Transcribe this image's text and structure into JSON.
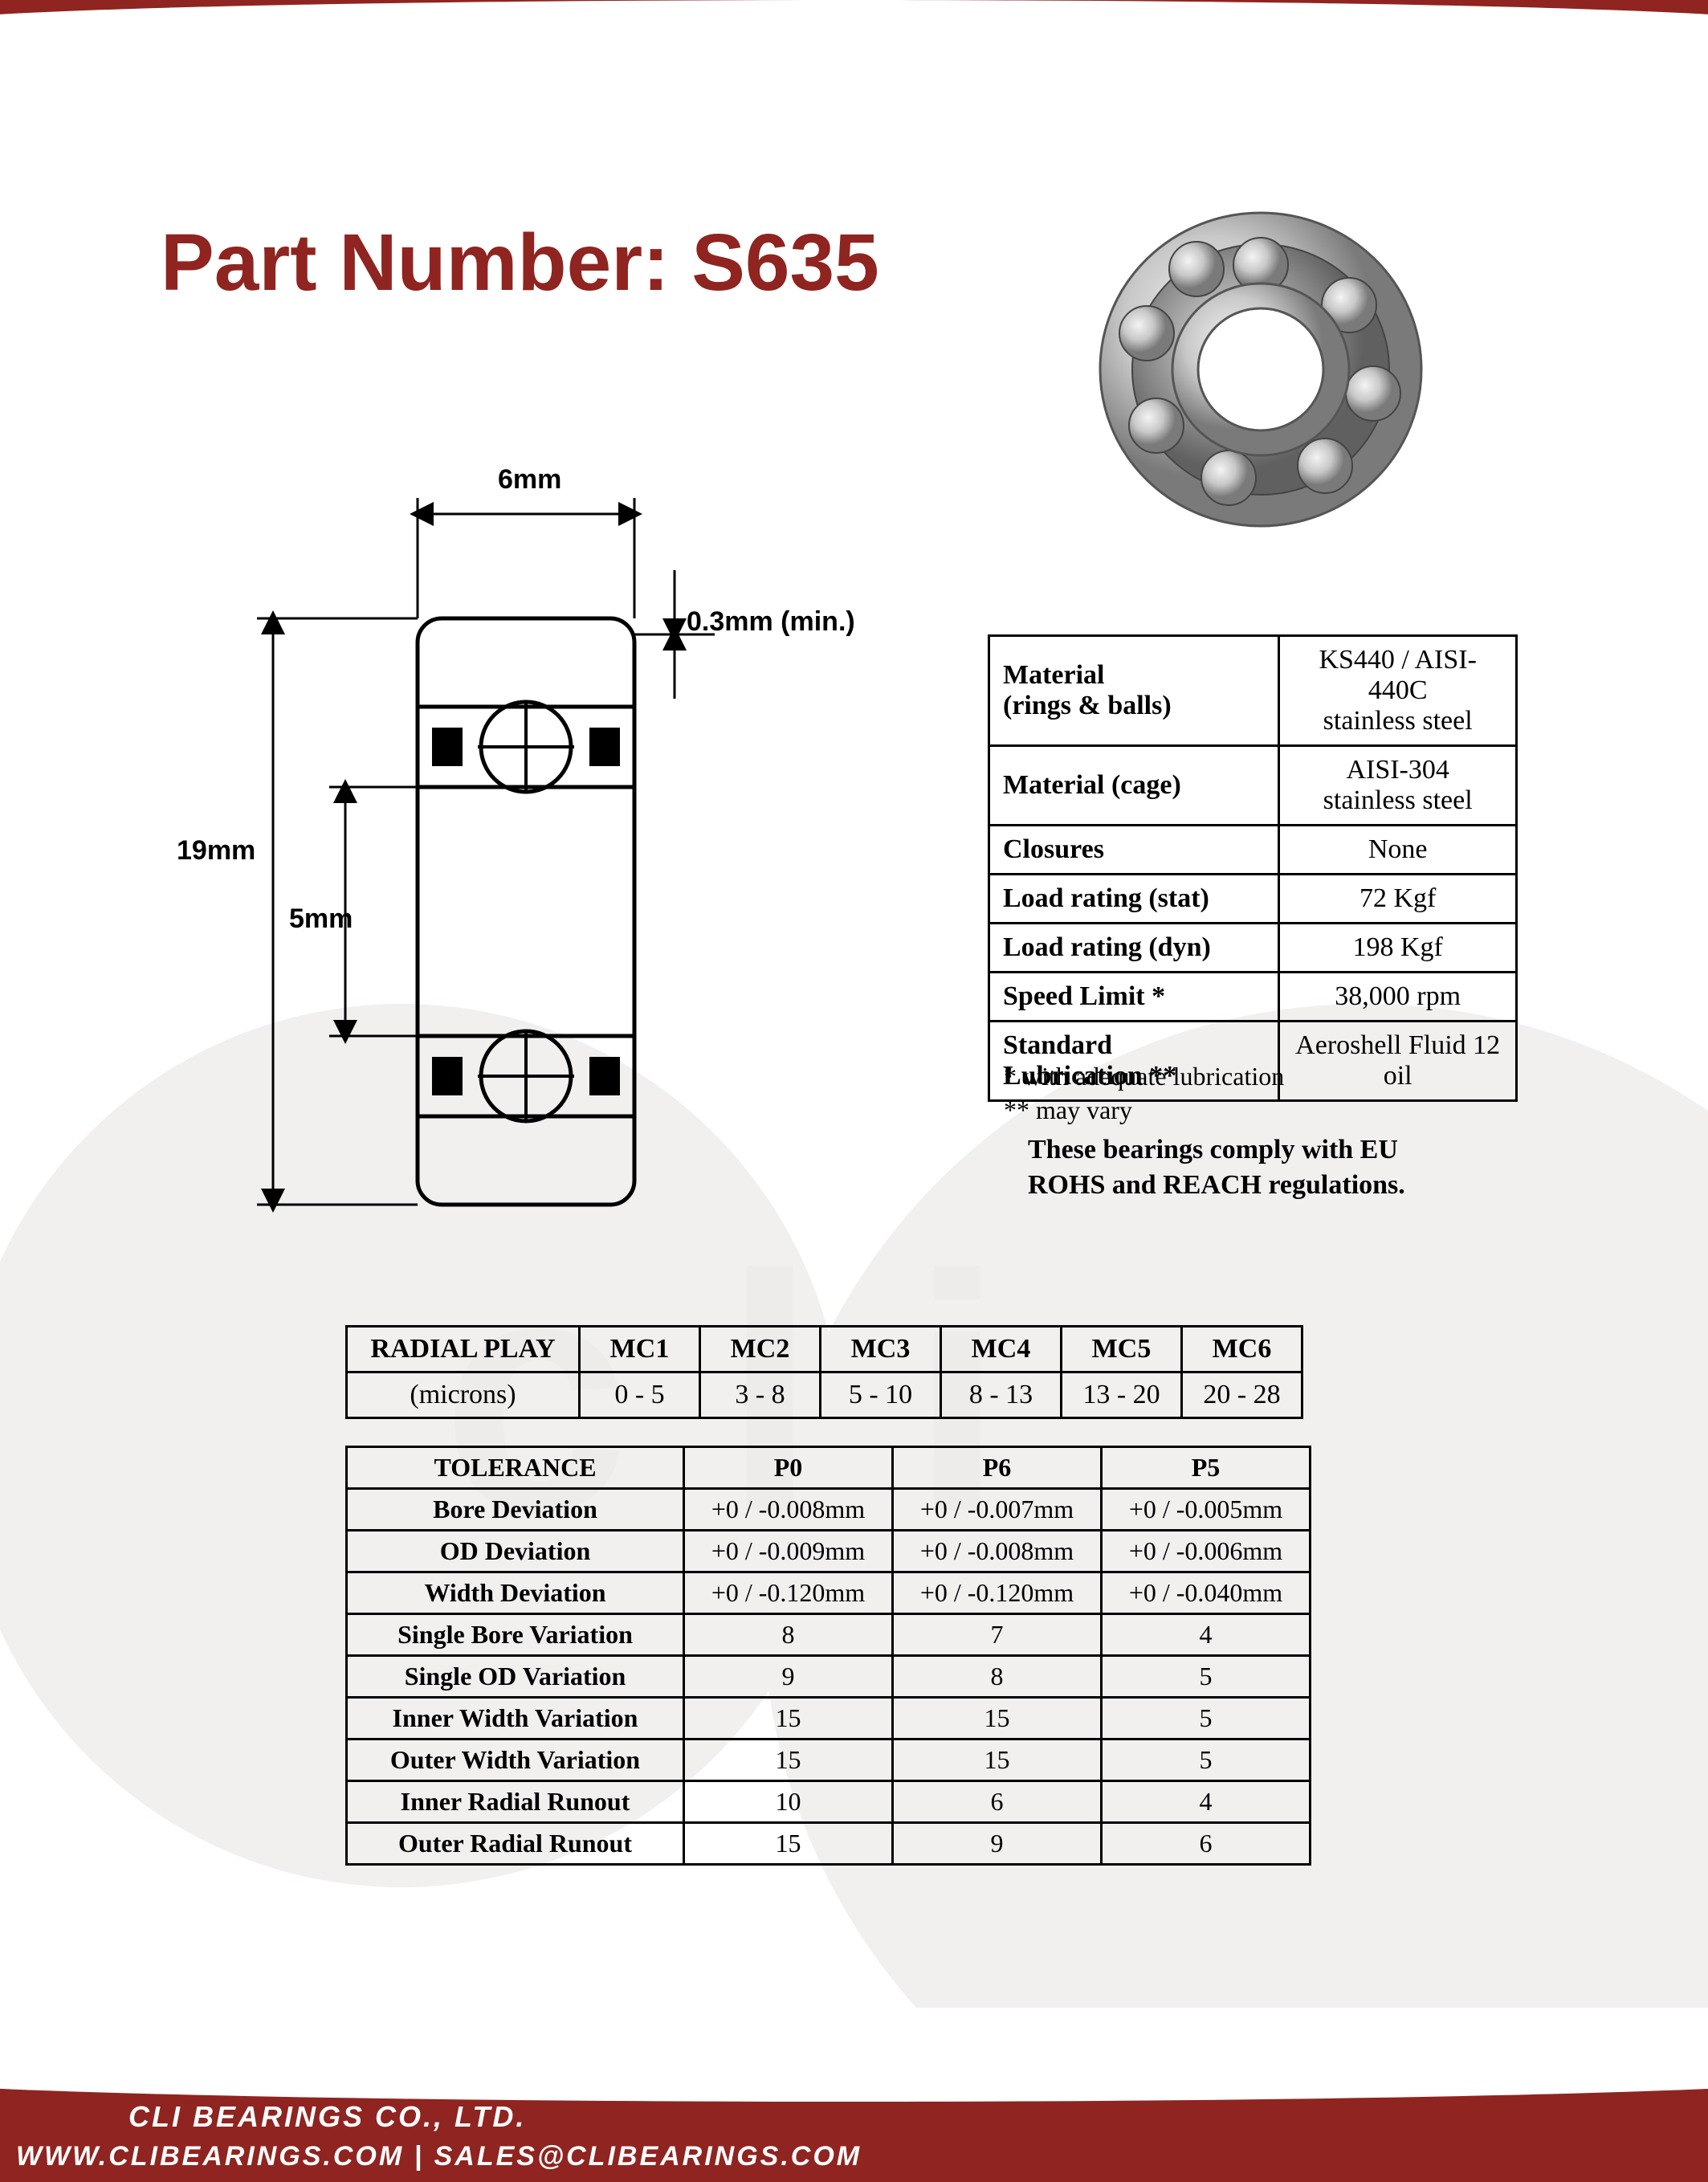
{
  "brand": {
    "cli": "CLI",
    "r": "®",
    "bearings": "BEARINGS"
  },
  "part_title_prefix": "Part Number: ",
  "part_number": "S635",
  "dimensions": {
    "width_label": "6mm",
    "chamfer_label": "0.3mm (min.)",
    "od_label": "19mm",
    "bore_label": "5mm"
  },
  "specs": {
    "rows": [
      {
        "label": "Material\n(rings & balls)",
        "value": "KS440 / AISI-440C\nstainless steel"
      },
      {
        "label": "Material (cage)",
        "value": "AISI-304\nstainless steel"
      },
      {
        "label": "Closures",
        "value": "None"
      },
      {
        "label": "Load rating (stat)",
        "value": "72 Kgf"
      },
      {
        "label": "Load rating (dyn)",
        "value": "198 Kgf"
      },
      {
        "label": "Speed Limit *",
        "value": "38,000 rpm"
      },
      {
        "label": "Standard\nLubrication **",
        "value": "Aeroshell Fluid 12\noil"
      }
    ],
    "note1": "* with adequate lubrication",
    "note2": "** may vary"
  },
  "compliance": "These bearings comply with EU ROHS and REACH  regulations.",
  "radial": {
    "header": "RADIAL PLAY",
    "unit": "(microns)",
    "cols": [
      "MC1",
      "MC2",
      "MC3",
      "MC4",
      "MC5",
      "MC6"
    ],
    "vals": [
      "0 - 5",
      "3 - 8",
      "5 - 10",
      "8 - 13",
      "13 - 20",
      "20 - 28"
    ]
  },
  "tolerance": {
    "header": "TOLERANCE",
    "cols": [
      "P0",
      "P6",
      "P5"
    ],
    "rows": [
      {
        "label": "Bore Deviation",
        "v": [
          "+0 / -0.008mm",
          "+0 / -0.007mm",
          "+0 / -0.005mm"
        ]
      },
      {
        "label": "OD Deviation",
        "v": [
          "+0 / -0.009mm",
          "+0 / -0.008mm",
          "+0 / -0.006mm"
        ]
      },
      {
        "label": "Width Deviation",
        "v": [
          "+0 / -0.120mm",
          "+0 / -0.120mm",
          "+0 / -0.040mm"
        ]
      },
      {
        "label": "Single Bore Variation",
        "v": [
          "8",
          "7",
          "4"
        ]
      },
      {
        "label": "Single OD Variation",
        "v": [
          "9",
          "8",
          "5"
        ]
      },
      {
        "label": "Inner Width Variation",
        "v": [
          "15",
          "15",
          "5"
        ]
      },
      {
        "label": "Outer Width Variation",
        "v": [
          "15",
          "15",
          "5"
        ]
      },
      {
        "label": "Inner Radial Runout",
        "v": [
          "10",
          "6",
          "4"
        ]
      },
      {
        "label": "Outer Radial Runout",
        "v": [
          "15",
          "9",
          "6"
        ]
      }
    ]
  },
  "footer": {
    "company": "CLI BEARINGS CO., LTD.",
    "website": "WWW.CLIBEARINGS.COM",
    "sep": "  |  ",
    "email": "SALES@CLIBEARINGS.COM"
  },
  "colors": {
    "brand_red": "#8f2420",
    "text": "#000000",
    "bg": "#ffffff",
    "steel_light": "#dcdcdc",
    "steel_dark": "#888888"
  }
}
